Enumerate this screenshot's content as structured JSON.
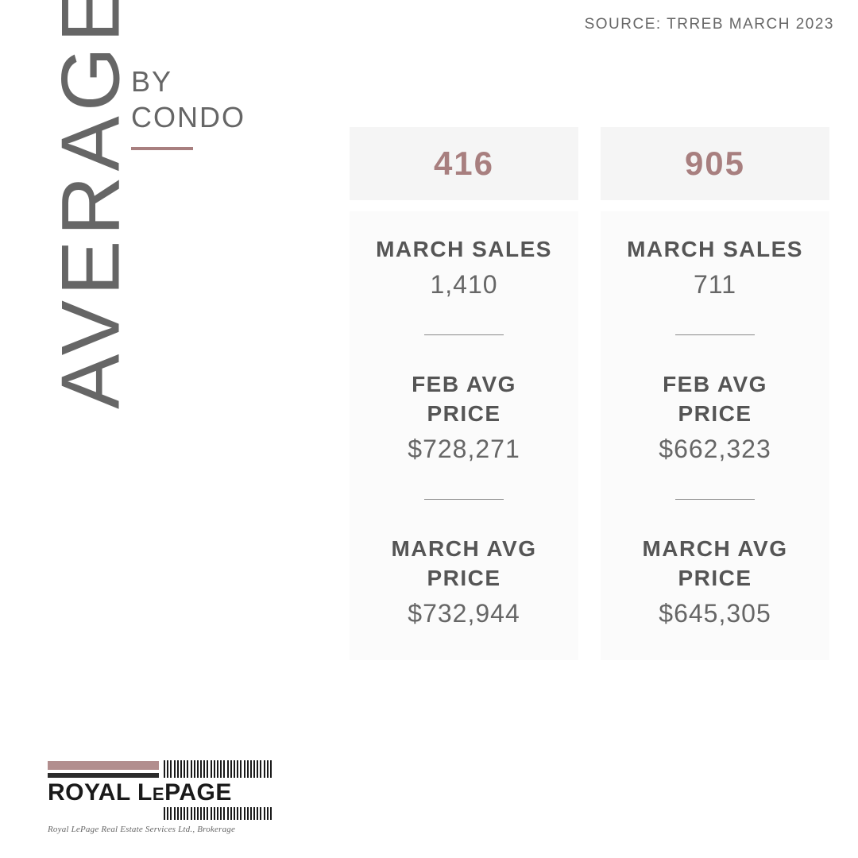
{
  "source_line": "SOURCE:  TRREB MARCH 2023",
  "vertical_title": "AVERAGE PRICE",
  "subtitle_line1": "BY",
  "subtitle_line2": "CONDO",
  "colors": {
    "accent": "#a87f7f",
    "text_gray": "#666666",
    "label_gray": "#555555",
    "card_header_bg": "#f5f5f5",
    "card_body_bg": "#fbfbfb",
    "page_bg": "#ffffff",
    "logo_mauve": "#b28e8e",
    "logo_dark": "#2b2b2b"
  },
  "cards": [
    {
      "header": "416",
      "stats": [
        {
          "label": "MARCH SALES",
          "value": "1,410"
        },
        {
          "label": "FEB AVG PRICE",
          "value": "$728,271"
        },
        {
          "label": "MARCH AVG PRICE",
          "value": "$732,944"
        }
      ]
    },
    {
      "header": "905",
      "stats": [
        {
          "label": "MARCH SALES",
          "value": "711"
        },
        {
          "label": "FEB AVG PRICE",
          "value": "$662,323"
        },
        {
          "label": "MARCH AVG PRICE",
          "value": "$645,305"
        }
      ]
    }
  ],
  "logo": {
    "name_a": "ROYAL L",
    "name_e": "E",
    "name_b": "PAGE",
    "subtext": "Royal LePage Real Estate Services Ltd., Brokerage"
  }
}
